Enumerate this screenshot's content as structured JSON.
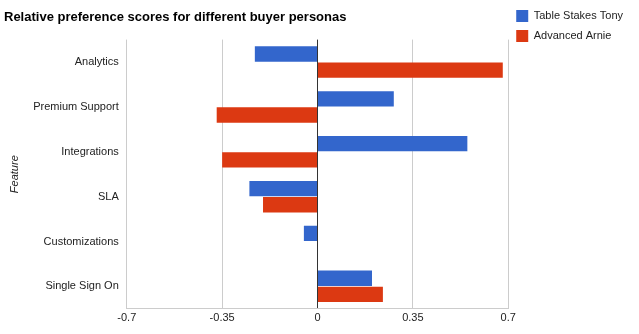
{
  "chart_data": {
    "type": "bar",
    "orientation": "horizontal",
    "title": "Relative preference scores for different buyer personas",
    "y_label": "Feature",
    "categories": [
      "Analytics",
      "Premium Support",
      "Integrations",
      "SLA",
      "Customizations",
      "Single Sign On"
    ],
    "series": [
      {
        "name": "Table Stakes Tony",
        "color": "#3366cc",
        "values": [
          -0.23,
          0.28,
          0.55,
          -0.25,
          -0.05,
          0.2
        ]
      },
      {
        "name": "Advanced Arnie",
        "color": "#dc3912",
        "values": [
          0.68,
          -0.37,
          -0.35,
          -0.2,
          0,
          0.24
        ]
      }
    ],
    "xlim": [
      -0.7,
      0.7
    ],
    "xticks": [
      -0.7,
      -0.35,
      0,
      0.35,
      0.7
    ],
    "grid": true,
    "legend": "right"
  }
}
